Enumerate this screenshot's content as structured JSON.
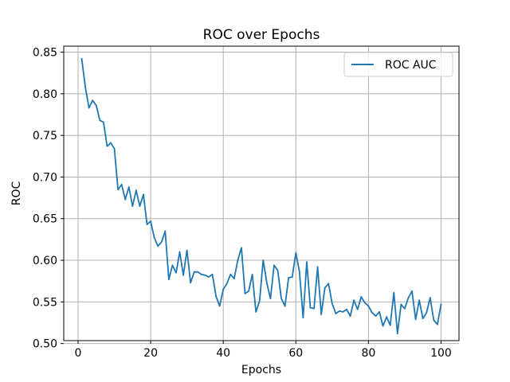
{
  "chart_data": {
    "type": "line",
    "title": "ROC over Epochs",
    "xlabel": "Epochs",
    "ylabel": "ROC",
    "xlim": [
      -3.95,
      104.95
    ],
    "ylim": [
      0.5035,
      0.8572
    ],
    "x_ticks": [
      0,
      20,
      40,
      60,
      80,
      100
    ],
    "y_ticks": [
      0.5,
      0.55,
      0.6,
      0.65,
      0.7,
      0.75,
      0.8,
      0.85
    ],
    "x_tick_labels": [
      "0",
      "20",
      "40",
      "60",
      "80",
      "100"
    ],
    "y_tick_labels": [
      "0.50",
      "0.55",
      "0.60",
      "0.65",
      "0.70",
      "0.75",
      "0.80",
      "0.85"
    ],
    "grid": true,
    "legend_position": "top-right",
    "line_color": "#1f77b4",
    "series": [
      {
        "name": "ROC AUC",
        "x": [
          1,
          2,
          3,
          4,
          5,
          6,
          7,
          8,
          9,
          10,
          11,
          12,
          13,
          14,
          15,
          16,
          17,
          18,
          19,
          20,
          21,
          22,
          23,
          24,
          25,
          26,
          27,
          28,
          29,
          30,
          31,
          32,
          33,
          34,
          35,
          36,
          37,
          38,
          39,
          40,
          41,
          42,
          43,
          44,
          45,
          46,
          47,
          48,
          49,
          50,
          51,
          52,
          53,
          54,
          55,
          56,
          57,
          58,
          59,
          60,
          61,
          62,
          63,
          64,
          65,
          66,
          67,
          68,
          69,
          70,
          71,
          72,
          73,
          74,
          75,
          76,
          77,
          78,
          79,
          80,
          81,
          82,
          83,
          84,
          85,
          86,
          87,
          88,
          89,
          90,
          91,
          92,
          93,
          94,
          95,
          96,
          97,
          98,
          99,
          100
        ],
        "values": [
          0.842,
          0.808,
          0.783,
          0.792,
          0.786,
          0.768,
          0.766,
          0.737,
          0.741,
          0.734,
          0.685,
          0.691,
          0.673,
          0.688,
          0.665,
          0.684,
          0.665,
          0.679,
          0.643,
          0.647,
          0.627,
          0.617,
          0.622,
          0.635,
          0.577,
          0.594,
          0.585,
          0.61,
          0.582,
          0.612,
          0.573,
          0.586,
          0.586,
          0.583,
          0.582,
          0.58,
          0.583,
          0.557,
          0.545,
          0.565,
          0.572,
          0.583,
          0.578,
          0.6,
          0.615,
          0.56,
          0.563,
          0.583,
          0.538,
          0.551,
          0.6,
          0.573,
          0.554,
          0.594,
          0.588,
          0.554,
          0.545,
          0.579,
          0.58,
          0.609,
          0.586,
          0.531,
          0.598,
          0.543,
          0.542,
          0.592,
          0.535,
          0.567,
          0.572,
          0.548,
          0.536,
          0.539,
          0.538,
          0.541,
          0.533,
          0.552,
          0.541,
          0.556,
          0.549,
          0.545,
          0.537,
          0.533,
          0.538,
          0.521,
          0.532,
          0.522,
          0.561,
          0.512,
          0.547,
          0.542,
          0.555,
          0.563,
          0.529,
          0.552,
          0.53,
          0.537,
          0.555,
          0.528,
          0.523,
          0.547
        ]
      }
    ]
  }
}
